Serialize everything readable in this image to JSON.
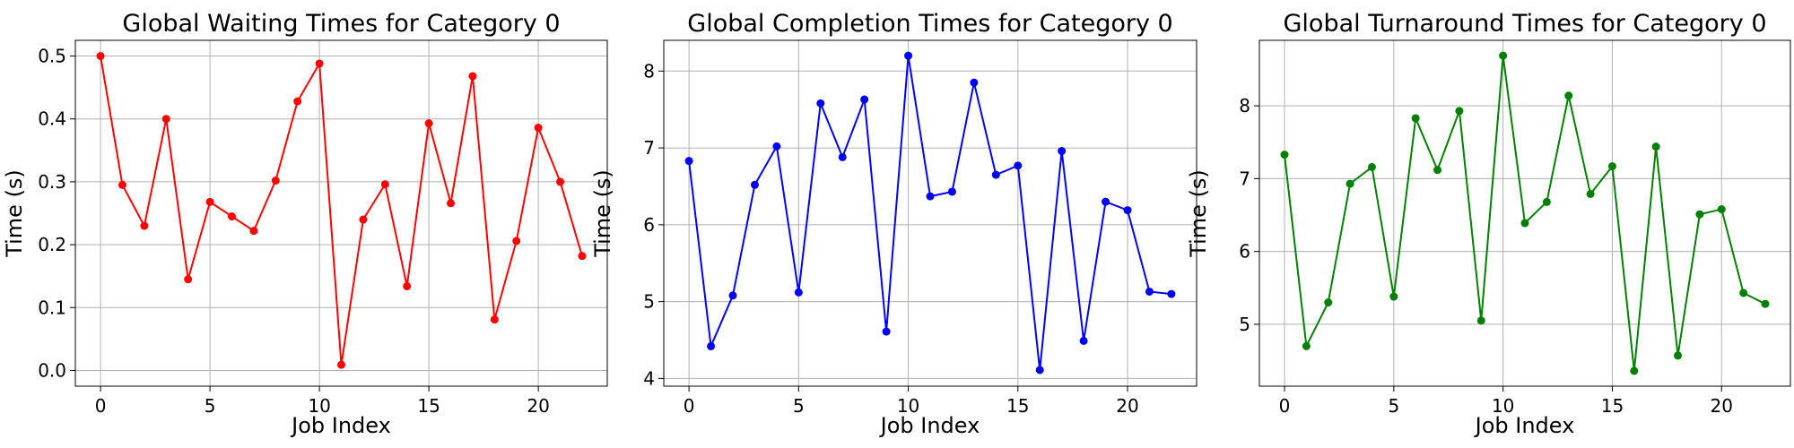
{
  "chart_data": [
    {
      "type": "line",
      "title": "Global Waiting Times for Category 0",
      "xlabel": "Job Index",
      "ylabel": "Time (s)",
      "xlim": [
        -1.15,
        23.15
      ],
      "ylim": [
        -0.025,
        0.525
      ],
      "xticks": [
        0,
        5,
        10,
        15,
        20
      ],
      "yticks": [
        0.0,
        0.1,
        0.2,
        0.3,
        0.4,
        0.5
      ],
      "ytick_labels": [
        "0.0",
        "0.1",
        "0.2",
        "0.3",
        "0.4",
        "0.5"
      ],
      "grid": true,
      "color": "#ff0000",
      "marker": "circle",
      "x": [
        0,
        1,
        2,
        3,
        4,
        5,
        6,
        7,
        8,
        9,
        10,
        11,
        12,
        13,
        14,
        15,
        16,
        17,
        18,
        19,
        20,
        21,
        22
      ],
      "y": [
        0.5,
        0.295,
        0.23,
        0.4,
        0.145,
        0.268,
        0.245,
        0.222,
        0.302,
        0.428,
        0.488,
        0.009,
        0.24,
        0.296,
        0.134,
        0.393,
        0.266,
        0.468,
        0.081,
        0.206,
        0.386,
        0.3,
        0.182
      ]
    },
    {
      "type": "line",
      "title": "Global Completion Times for Category 0",
      "xlabel": "Job Index",
      "ylabel": "Time (s)",
      "xlim": [
        -1.15,
        23.15
      ],
      "ylim": [
        3.9,
        8.4
      ],
      "xticks": [
        0,
        5,
        10,
        15,
        20
      ],
      "yticks": [
        4,
        5,
        6,
        7,
        8
      ],
      "ytick_labels": [
        "4",
        "5",
        "6",
        "7",
        "8"
      ],
      "grid": true,
      "color": "#0000ff",
      "marker": "circle",
      "x": [
        0,
        1,
        2,
        3,
        4,
        5,
        6,
        7,
        8,
        9,
        10,
        11,
        12,
        13,
        14,
        15,
        16,
        17,
        18,
        19,
        20,
        21,
        22
      ],
      "y": [
        6.83,
        4.42,
        5.08,
        6.52,
        7.02,
        5.12,
        7.58,
        6.88,
        7.63,
        4.61,
        8.2,
        6.37,
        6.43,
        7.85,
        6.65,
        6.77,
        4.11,
        6.96,
        4.49,
        6.3,
        6.19,
        5.13,
        5.1
      ]
    },
    {
      "type": "line",
      "title": "Global Turnaround Times for Category 0",
      "xlabel": "Job Index",
      "ylabel": "Time (s)",
      "xlim": [
        -1.15,
        23.15
      ],
      "ylim": [
        4.15,
        8.9
      ],
      "xticks": [
        0,
        5,
        10,
        15,
        20
      ],
      "yticks": [
        5,
        6,
        7,
        8
      ],
      "ytick_labels": [
        "5",
        "6",
        "7",
        "8"
      ],
      "grid": true,
      "color": "#008000",
      "marker": "circle",
      "x": [
        0,
        1,
        2,
        3,
        4,
        5,
        6,
        7,
        8,
        9,
        10,
        11,
        12,
        13,
        14,
        15,
        16,
        17,
        18,
        19,
        20,
        21,
        22
      ],
      "y": [
        7.33,
        4.7,
        5.3,
        6.93,
        7.16,
        5.38,
        7.83,
        7.12,
        7.93,
        5.05,
        8.69,
        6.39,
        6.68,
        8.14,
        6.79,
        7.17,
        4.36,
        7.44,
        4.57,
        6.51,
        6.58,
        5.43,
        5.28
      ]
    }
  ]
}
